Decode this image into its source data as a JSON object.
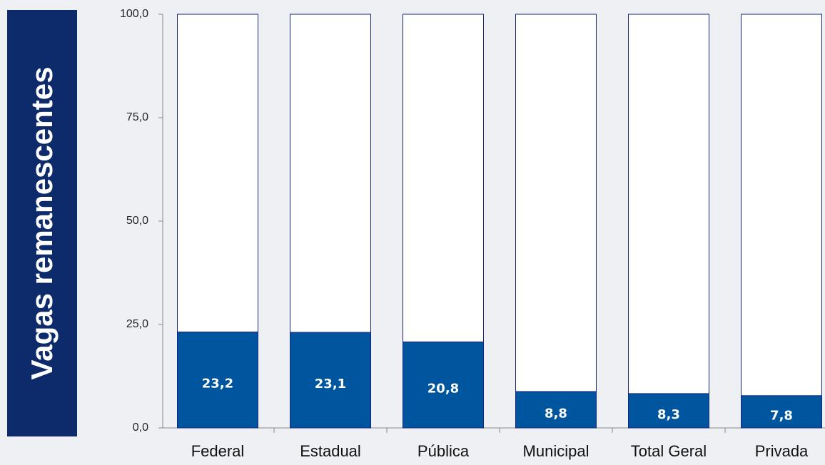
{
  "chart_data": {
    "type": "bar",
    "ylabel": "Vagas remanescentes",
    "categories": [
      "Federal",
      "Estadual",
      "Pública",
      "Municipal",
      "Total Geral",
      "Privada"
    ],
    "values": [
      23.2,
      23.1,
      20.8,
      8.8,
      8.3,
      7.8
    ],
    "value_labels": [
      "23,2",
      "23,1",
      "20,8",
      "8,8",
      "8,3",
      "7,8"
    ],
    "color": "#00569e",
    "ylim": [
      0,
      100
    ],
    "yticks": [
      {
        "value": 0,
        "label": "0,0"
      },
      {
        "value": 25,
        "label": "25,0"
      },
      {
        "value": 50,
        "label": "50,0"
      },
      {
        "value": 75,
        "label": "75,0"
      },
      {
        "value": 100,
        "label": "100,0"
      }
    ]
  }
}
